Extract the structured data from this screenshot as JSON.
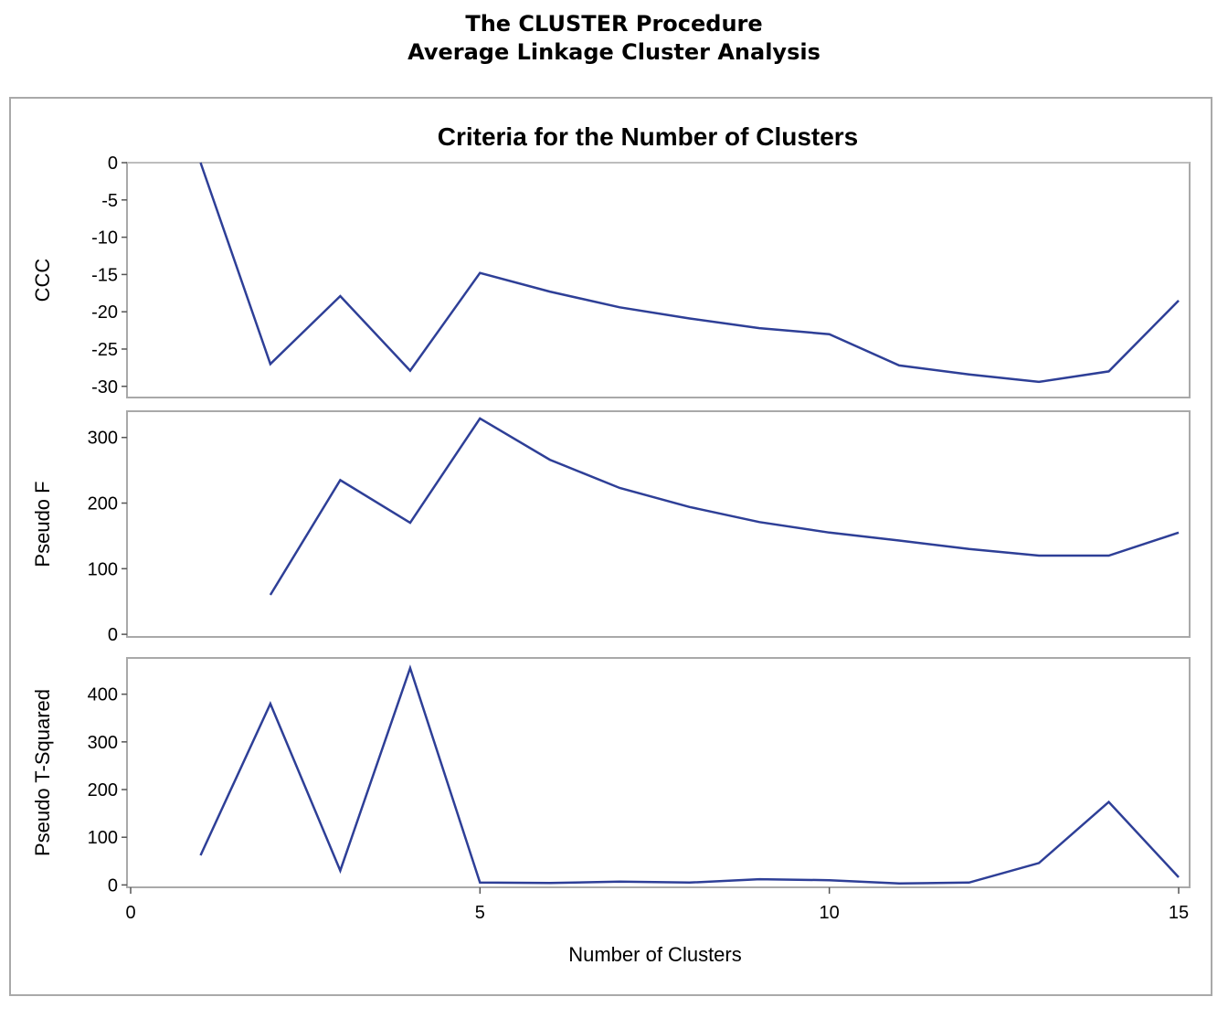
{
  "header": {
    "procedure_title": "The CLUSTER Procedure",
    "analysis_title": "Average Linkage Cluster Analysis"
  },
  "colors": {
    "line": "#2e3f97",
    "frame": "#a9a9a9",
    "zero_line": "#bdbdbd"
  },
  "chart_data": {
    "type": "line",
    "title": "Criteria for the Number of Clusters",
    "xlabel": "Number of Clusters",
    "xlim": [
      0,
      15
    ],
    "x_ticks": [
      0,
      5,
      10,
      15
    ],
    "panels": [
      {
        "ylabel": "CCC",
        "ylim": [
          -31.5,
          0
        ],
        "y_ticks": [
          0,
          -5,
          -10,
          -15,
          -20,
          -25,
          -30
        ],
        "reference_line": 0,
        "x": [
          1,
          2,
          3,
          4,
          5,
          6,
          7,
          8,
          9,
          10,
          11,
          12,
          13,
          14,
          15
        ],
        "values": [
          0,
          -27.0,
          -17.9,
          -27.9,
          -14.8,
          -17.3,
          -19.4,
          -20.9,
          -22.2,
          -23.0,
          -27.2,
          -28.4,
          -29.4,
          -28.0,
          -18.5
        ]
      },
      {
        "ylabel": "Pseudo F",
        "ylim": [
          -4,
          340
        ],
        "y_ticks": [
          0,
          100,
          200,
          300
        ],
        "x": [
          2,
          3,
          4,
          5,
          6,
          7,
          8,
          9,
          10,
          11,
          12,
          13,
          14,
          15
        ],
        "values": [
          60,
          235,
          170,
          329,
          266,
          223,
          194,
          171,
          155,
          143,
          130,
          120,
          120,
          155
        ]
      },
      {
        "ylabel": "Pseudo T-Squared",
        "ylim": [
          -5,
          476
        ],
        "y_ticks": [
          0,
          100,
          200,
          300,
          400
        ],
        "x": [
          1,
          2,
          3,
          4,
          5,
          6,
          7,
          8,
          9,
          10,
          11,
          12,
          13,
          14,
          15
        ],
        "values": [
          62,
          380,
          30,
          455,
          5,
          4,
          7,
          5,
          12,
          10,
          3,
          5,
          46,
          174,
          16
        ]
      }
    ]
  }
}
